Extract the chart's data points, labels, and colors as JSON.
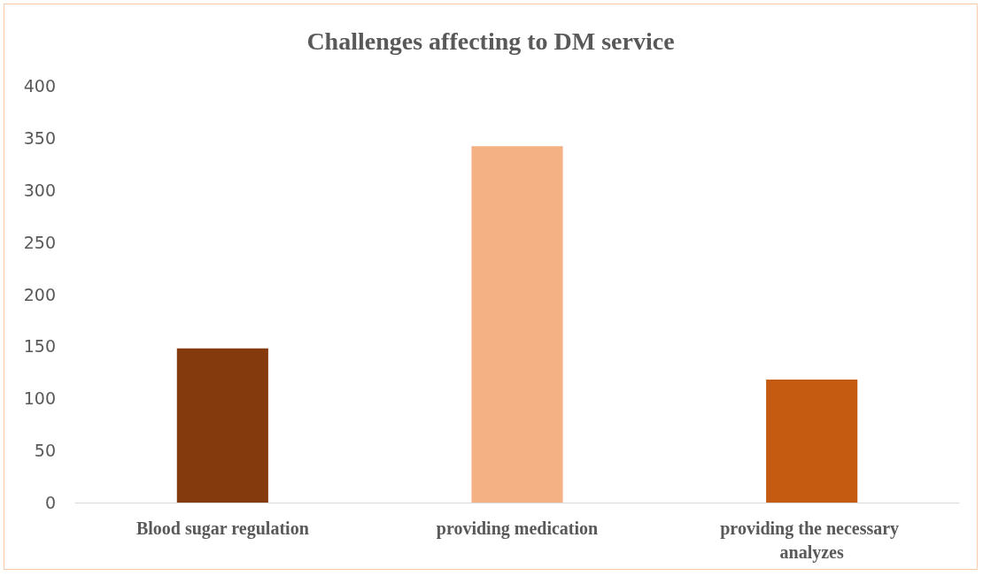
{
  "chart_data": {
    "type": "bar",
    "title": "Challenges affecting to DM service",
    "categories": [
      "Blood sugar regulation",
      "providing medication",
      "providing the necessary analyzes"
    ],
    "values": [
      148,
      342,
      118
    ],
    "colors": [
      "#843a0c",
      "#f4b183",
      "#c55a11"
    ],
    "ylim": [
      0,
      400
    ],
    "yticks": [
      0,
      50,
      100,
      150,
      200,
      250,
      300,
      350,
      400
    ],
    "grid": false
  }
}
